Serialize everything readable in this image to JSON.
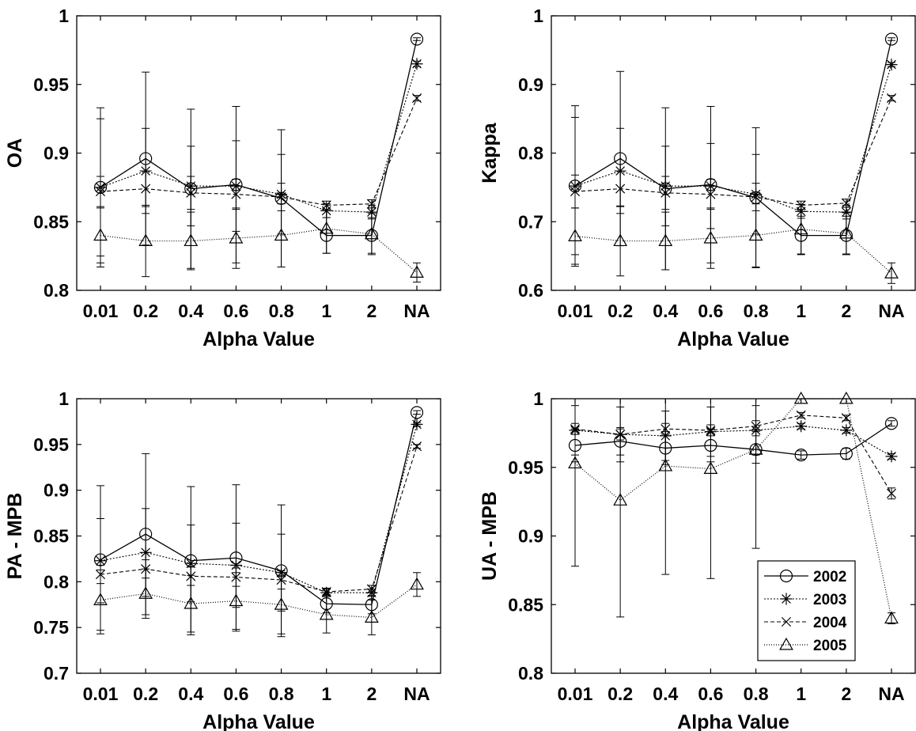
{
  "chart_data": [
    {
      "type": "line",
      "xlabel": "Alpha Value",
      "ylabel": "OA",
      "categories": [
        "0.01",
        "0.2",
        "0.4",
        "0.6",
        "0.8",
        "1",
        "2",
        "NA"
      ],
      "ylim": [
        0.8,
        1
      ],
      "yticks": [
        "0.8",
        "0.85",
        "0.9",
        "0.95",
        "1"
      ],
      "series": [
        {
          "name": "2002",
          "values": [
            0.875,
            0.896,
            0.874,
            0.877,
            0.867,
            0.84,
            0.84,
            0.983
          ],
          "errors": [
            0.058,
            0.063,
            0.058,
            0.057,
            0.05,
            0.013,
            0.013,
            0.001
          ]
        },
        {
          "name": "2003",
          "values": [
            0.875,
            0.887,
            0.876,
            0.876,
            0.87,
            0.858,
            0.857,
            0.965
          ],
          "errors": [
            0.05,
            0.031,
            0.029,
            0.033,
            0.029,
            0.005,
            0.005,
            0.002
          ]
        },
        {
          "name": "2004",
          "values": [
            0.872,
            0.874,
            0.871,
            0.87,
            0.868,
            0.862,
            0.863,
            0.94
          ],
          "errors": [
            0.011,
            0.013,
            0.012,
            0.011,
            0.01,
            0.003,
            0.003,
            0.002
          ]
        },
        {
          "name": "2005",
          "values": [
            0.84,
            0.836,
            0.836,
            0.838,
            0.84,
            0.845,
            0.841,
            0.813
          ],
          "errors": [
            0.02,
            0.026,
            0.021,
            0.022,
            0.023,
            0.018,
            0.015,
            0.007
          ]
        }
      ]
    },
    {
      "type": "line",
      "xlabel": "Alpha Value",
      "ylabel": "Kappa",
      "categories": [
        "0.01",
        "0.2",
        "0.4",
        "0.6",
        "0.8",
        "1",
        "2",
        "NA"
      ],
      "ylim": [
        0.6,
        1
      ],
      "yticks": [
        "0.6",
        "0.7",
        "0.8",
        "0.9",
        "1"
      ],
      "series": [
        {
          "name": "2002",
          "values": [
            0.752,
            0.792,
            0.748,
            0.754,
            0.735,
            0.68,
            0.68,
            0.966
          ],
          "errors": [
            0.117,
            0.127,
            0.118,
            0.114,
            0.102,
            0.028,
            0.028,
            0.002
          ]
        },
        {
          "name": "2003",
          "values": [
            0.752,
            0.774,
            0.752,
            0.752,
            0.74,
            0.715,
            0.714,
            0.929
          ],
          "errors": [
            0.1,
            0.062,
            0.058,
            0.062,
            0.058,
            0.01,
            0.01,
            0.003
          ]
        },
        {
          "name": "2004",
          "values": [
            0.744,
            0.748,
            0.742,
            0.74,
            0.736,
            0.724,
            0.727,
            0.88
          ],
          "errors": [
            0.024,
            0.026,
            0.024,
            0.022,
            0.02,
            0.006,
            0.006,
            0.004
          ]
        },
        {
          "name": "2005",
          "values": [
            0.679,
            0.672,
            0.672,
            0.676,
            0.68,
            0.689,
            0.683,
            0.625
          ],
          "errors": [
            0.041,
            0.051,
            0.042,
            0.044,
            0.046,
            0.036,
            0.03,
            0.015
          ]
        }
      ]
    },
    {
      "type": "line",
      "xlabel": "Alpha Value",
      "ylabel": "PA - MPB",
      "categories": [
        "0.01",
        "0.2",
        "0.4",
        "0.6",
        "0.8",
        "1",
        "2",
        "NA"
      ],
      "ylim": [
        0.7,
        1
      ],
      "yticks": [
        "0.7",
        "0.75",
        "0.8",
        "0.85",
        "0.9",
        "0.95",
        "1"
      ],
      "series": [
        {
          "name": "2002",
          "values": [
            0.824,
            0.852,
            0.823,
            0.826,
            0.812,
            0.776,
            0.775,
            0.985
          ],
          "errors": [
            0.081,
            0.088,
            0.081,
            0.08,
            0.072,
            0.01,
            0.01,
            0.002
          ]
        },
        {
          "name": "2003",
          "values": [
            0.823,
            0.832,
            0.82,
            0.818,
            0.81,
            0.788,
            0.788,
            0.972
          ],
          "errors": [
            0.046,
            0.048,
            0.042,
            0.046,
            0.042,
            0.004,
            0.004,
            0.002
          ]
        },
        {
          "name": "2004",
          "values": [
            0.808,
            0.814,
            0.806,
            0.805,
            0.802,
            0.789,
            0.792,
            0.948
          ],
          "errors": [
            0.01,
            0.01,
            0.01,
            0.01,
            0.01,
            0.004,
            0.004,
            0.002
          ]
        },
        {
          "name": "2005",
          "values": [
            0.78,
            0.787,
            0.776,
            0.779,
            0.775,
            0.764,
            0.761,
            0.797
          ],
          "errors": [
            0.033,
            0.027,
            0.031,
            0.031,
            0.032,
            0.02,
            0.019,
            0.013
          ]
        }
      ]
    },
    {
      "type": "line",
      "xlabel": "Alpha Value",
      "ylabel": "UA - MPB",
      "categories": [
        "0.01",
        "0.2",
        "0.4",
        "0.6",
        "0.8",
        "1",
        "2",
        "NA"
      ],
      "ylim": [
        0.8,
        1
      ],
      "yticks": [
        "0.8",
        "0.85",
        "0.9",
        "0.95",
        "1"
      ],
      "legend": "bottom-right",
      "series": [
        {
          "name": "2002",
          "values": [
            0.966,
            0.969,
            0.964,
            0.966,
            0.963,
            0.959,
            0.96,
            0.982
          ],
          "errors": [
            0.012,
            0.01,
            0.012,
            0.012,
            0.01,
            0.003,
            0.004,
            0.002
          ]
        },
        {
          "name": "2003",
          "values": [
            0.977,
            0.974,
            0.973,
            0.976,
            0.977,
            0.98,
            0.977,
            0.958
          ],
          "errors": [
            0.018,
            0.02,
            0.018,
            0.018,
            0.018,
            0.002,
            0.002,
            0.002
          ]
        },
        {
          "name": "2004",
          "values": [
            0.978,
            0.974,
            0.978,
            0.977,
            0.98,
            0.988,
            0.986,
            0.931
          ],
          "errors": [
            0.004,
            0.004,
            0.004,
            0.004,
            0.004,
            0.002,
            0.002,
            0.004
          ]
        },
        {
          "name": "2005",
          "values": [
            0.953,
            0.926,
            0.951,
            0.949,
            0.963,
            1.0,
            1.0,
            0.84
          ],
          "errors": [
            0.075,
            0.085,
            0.079,
            0.08,
            0.072,
            0.0,
            0.0,
            0.004
          ]
        }
      ]
    }
  ]
}
